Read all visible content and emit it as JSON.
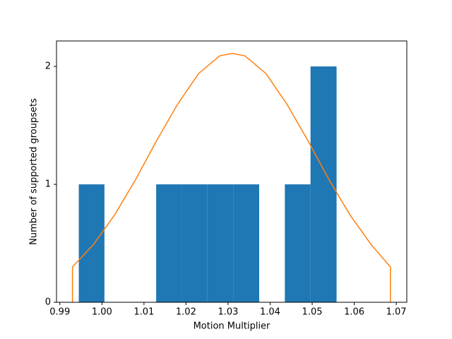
{
  "chart_data": {
    "type": "histogram",
    "xlabel": "Motion Multiplier",
    "ylabel": "Number of supported groupsets",
    "bins": [
      0.9945,
      1.0006,
      1.0068,
      1.0129,
      1.019,
      1.0251,
      1.0313,
      1.0374,
      1.0435,
      1.0496,
      1.0558
    ],
    "values": [
      1,
      0,
      0,
      1,
      1,
      1,
      1,
      0,
      1,
      2
    ],
    "color": "#1f77b4",
    "curve": {
      "type": "line",
      "color": "#ff7f0e",
      "x": [
        0.993,
        0.993,
        0.998,
        1.003,
        1.008,
        1.013,
        1.018,
        1.023,
        1.028,
        1.031,
        1.034,
        1.039,
        1.044,
        1.049,
        1.054,
        1.059,
        1.064,
        1.0686,
        1.0686
      ],
      "values": [
        0,
        0.3,
        0.49,
        0.74,
        1.04,
        1.37,
        1.68,
        1.94,
        2.09,
        2.11,
        2.09,
        1.94,
        1.68,
        1.37,
        1.04,
        0.74,
        0.49,
        0.3,
        0
      ]
    },
    "xlim": [
      0.9892,
      1.0725
    ],
    "ylim": [
      0,
      2.216
    ],
    "xticks": [
      0.99,
      {
        "value": 1.0,
        "label": "1.00"
      },
      1.01,
      1.02,
      1.03,
      1.04,
      1.05,
      1.06,
      1.07
    ],
    "yticks": [
      0,
      1,
      2
    ]
  }
}
